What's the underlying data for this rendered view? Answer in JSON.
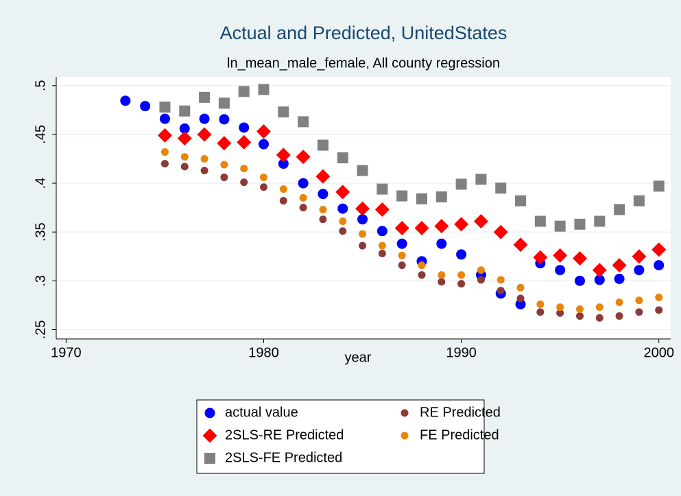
{
  "chart_data": {
    "type": "scatter",
    "title": "Actual and Predicted, UnitedStates",
    "subtitle": "ln_mean_male_female, All county regression",
    "x_label": "year",
    "xlim": [
      1969.5,
      2000.6
    ],
    "xticks": [
      1970,
      1980,
      1990,
      2000
    ],
    "ylim": [
      0.2405,
      0.509
    ],
    "yticks": [
      {
        "value": 0.25,
        "label": ".25"
      },
      {
        "value": 0.3,
        "label": ".3"
      },
      {
        "value": 0.35,
        "label": ".35"
      },
      {
        "value": 0.4,
        "label": ".4"
      },
      {
        "value": 0.45,
        "label": ".45"
      },
      {
        "value": 0.5,
        "label": ".5"
      }
    ],
    "grid": true,
    "legend": "bottom",
    "series": [
      {
        "name": "actual value",
        "color": "#0000ff",
        "marker": "circle",
        "marker_size": "large",
        "x": [
          1973,
          1974,
          1975,
          1976,
          1977,
          1978,
          1979,
          1980,
          1981,
          1982,
          1983,
          1984,
          1985,
          1986,
          1987,
          1988,
          1989,
          1990,
          1991,
          1992,
          1993,
          1994,
          1995,
          1996,
          1997,
          1998,
          1999,
          2000
        ],
        "values": [
          0.4845,
          0.479,
          0.466,
          0.456,
          0.466,
          0.4655,
          0.457,
          0.44,
          0.42,
          0.4,
          0.389,
          0.374,
          0.363,
          0.351,
          0.338,
          0.32,
          0.338,
          0.327,
          0.306,
          0.287,
          0.276,
          0.318,
          0.311,
          0.3,
          0.301,
          0.302,
          0.311,
          0.316
        ]
      },
      {
        "name": "RE Predicted",
        "color": "#8b3a3a",
        "marker": "circle",
        "marker_size": "small",
        "x": [
          1975,
          1976,
          1977,
          1978,
          1979,
          1980,
          1981,
          1982,
          1983,
          1984,
          1985,
          1986,
          1987,
          1988,
          1989,
          1990,
          1991,
          1992,
          1993,
          1994,
          1995,
          1996,
          1997,
          1998,
          1999,
          2000
        ],
        "values": [
          0.42,
          0.417,
          0.413,
          0.406,
          0.401,
          0.396,
          0.382,
          0.375,
          0.363,
          0.351,
          0.336,
          0.328,
          0.316,
          0.306,
          0.299,
          0.297,
          0.301,
          0.29,
          0.282,
          0.268,
          0.267,
          0.264,
          0.262,
          0.264,
          0.268,
          0.27
        ]
      },
      {
        "name": "2SLS-RE Predicted",
        "color": "#ff0000",
        "marker": "diamond",
        "marker_size": "large",
        "x": [
          1975,
          1976,
          1977,
          1978,
          1979,
          1980,
          1981,
          1982,
          1983,
          1984,
          1985,
          1986,
          1987,
          1988,
          1989,
          1990,
          1991,
          1992,
          1993,
          1994,
          1995,
          1996,
          1997,
          1998,
          1999,
          2000
        ],
        "values": [
          0.449,
          0.446,
          0.45,
          0.441,
          0.442,
          0.453,
          0.429,
          0.427,
          0.407,
          0.391,
          0.374,
          0.373,
          0.354,
          0.354,
          0.356,
          0.358,
          0.361,
          0.35,
          0.337,
          0.324,
          0.326,
          0.323,
          0.311,
          0.316,
          0.325,
          0.332
        ]
      },
      {
        "name": "FE Predicted",
        "color": "#e8860c",
        "marker": "circle",
        "marker_size": "small",
        "x": [
          1975,
          1976,
          1977,
          1978,
          1979,
          1980,
          1981,
          1982,
          1983,
          1984,
          1985,
          1986,
          1987,
          1988,
          1989,
          1990,
          1991,
          1992,
          1993,
          1994,
          1995,
          1996,
          1997,
          1998,
          1999,
          2000
        ],
        "values": [
          0.432,
          0.427,
          0.425,
          0.419,
          0.415,
          0.406,
          0.394,
          0.385,
          0.373,
          0.361,
          0.348,
          0.336,
          0.326,
          0.316,
          0.306,
          0.306,
          0.311,
          0.301,
          0.293,
          0.276,
          0.273,
          0.271,
          0.273,
          0.278,
          0.28,
          0.283
        ]
      },
      {
        "name": "2SLS-FE Predicted",
        "color": "#808080",
        "marker": "square",
        "marker_size": "large",
        "x": [
          1975,
          1976,
          1977,
          1978,
          1979,
          1980,
          1981,
          1982,
          1983,
          1984,
          1985,
          1986,
          1987,
          1988,
          1989,
          1990,
          1991,
          1992,
          1993,
          1994,
          1995,
          1996,
          1997,
          1998,
          1999,
          2000
        ],
        "values": [
          0.478,
          0.474,
          0.488,
          0.482,
          0.494,
          0.496,
          0.473,
          0.463,
          0.439,
          0.426,
          0.413,
          0.394,
          0.387,
          0.384,
          0.386,
          0.399,
          0.404,
          0.395,
          0.382,
          0.361,
          0.356,
          0.358,
          0.361,
          0.373,
          0.382,
          0.397
        ]
      }
    ]
  }
}
